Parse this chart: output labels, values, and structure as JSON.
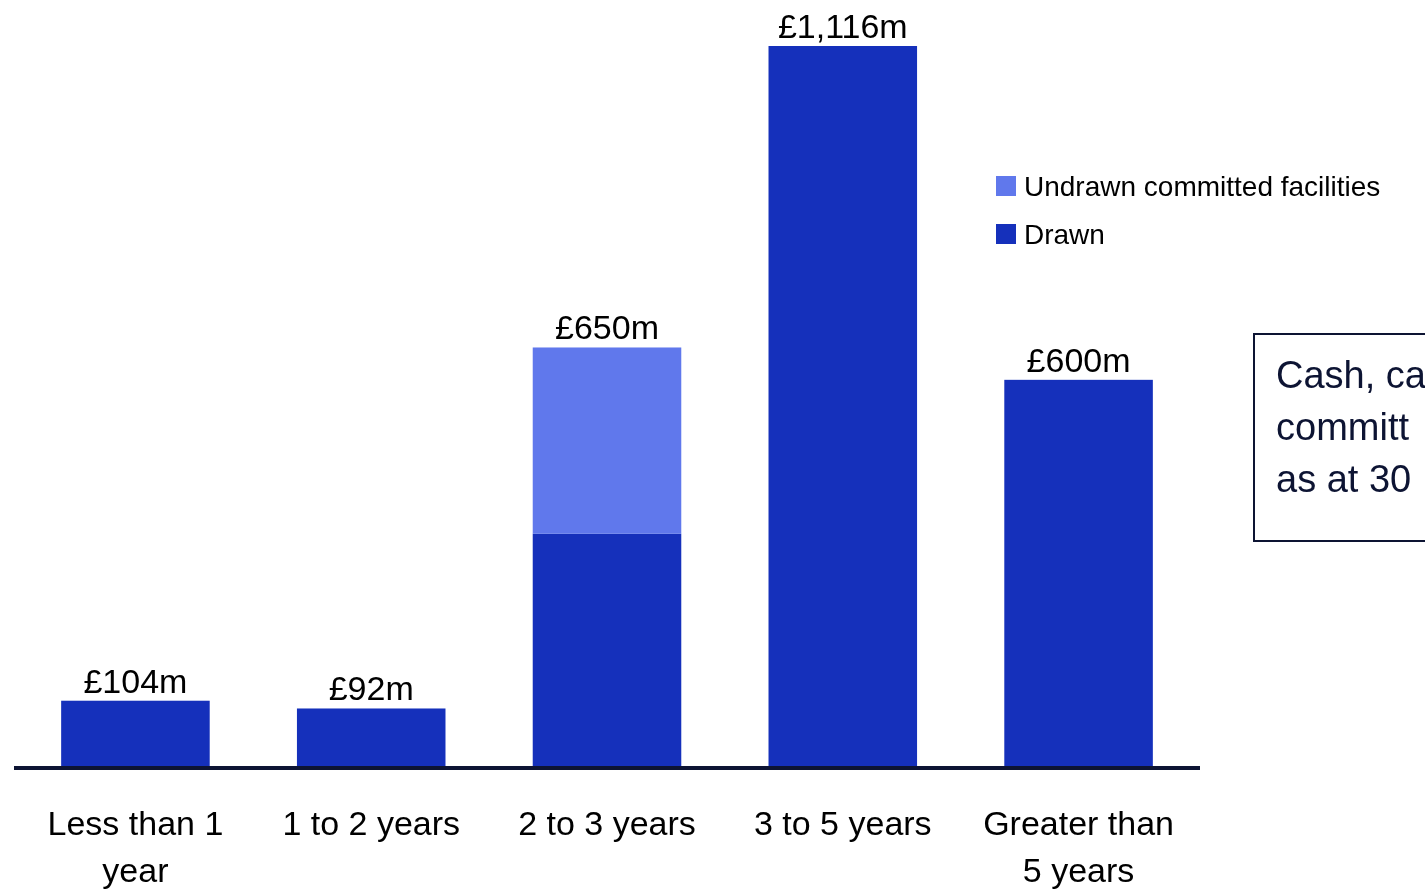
{
  "chart_data": {
    "type": "bar",
    "stacked": true,
    "categories": [
      "Less than 1 year",
      "1 to 2 years",
      "2 to 3 years",
      "3 to 5 years",
      "Greater than 5 years"
    ],
    "series": [
      {
        "name": "Drawn",
        "color": "#1530bb",
        "values": [
          104,
          92,
          362,
          1116,
          600
        ],
        "value_labels": [
          "£104m",
          "£92m",
          null,
          "£1,116m",
          "£600m"
        ]
      },
      {
        "name": "Undrawn committed facilities",
        "color": "#6078ec",
        "values": [
          null,
          null,
          288,
          null,
          null
        ]
      }
    ],
    "totals": [
      null,
      null,
      "£650m",
      null,
      null
    ],
    "legend": "top right",
    "annotations": [
      "Cash, ca\ncommitt\nas at 30"
    ]
  }
}
